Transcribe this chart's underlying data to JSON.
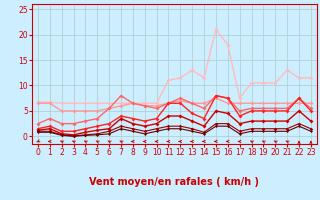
{
  "xlabel": "Vent moyen/en rafales ( km/h )",
  "bg_color": "#cceeff",
  "grid_color": "#aacccc",
  "axis_color": "#cc0000",
  "xlim": [
    -0.5,
    23.5
  ],
  "ylim": [
    -1.5,
    26
  ],
  "yticks": [
    0,
    5,
    10,
    15,
    20,
    25
  ],
  "xticks": [
    0,
    1,
    2,
    3,
    4,
    5,
    6,
    7,
    8,
    9,
    10,
    11,
    12,
    13,
    14,
    15,
    16,
    17,
    18,
    19,
    20,
    21,
    22,
    23
  ],
  "series": [
    {
      "x": [
        0,
        1,
        2,
        3,
        4,
        5,
        6,
        7,
        8,
        9,
        10,
        11,
        12,
        13,
        14,
        15,
        16,
        17,
        18,
        19,
        20,
        21,
        22,
        23
      ],
      "y": [
        6.7,
        6.7,
        6.5,
        6.5,
        6.5,
        6.5,
        6.5,
        6.5,
        6.5,
        6.5,
        6.5,
        11.0,
        11.5,
        13.0,
        11.5,
        21.0,
        18.0,
        7.5,
        10.5,
        10.5,
        10.5,
        13.0,
        11.5,
        11.5
      ],
      "color": "#ffbbbb",
      "linewidth": 1.0,
      "marker": "D",
      "markersize": 2.0
    },
    {
      "x": [
        0,
        1,
        2,
        3,
        4,
        5,
        6,
        7,
        8,
        9,
        10,
        11,
        12,
        13,
        14,
        15,
        16,
        17,
        18,
        19,
        20,
        21,
        22,
        23
      ],
      "y": [
        6.5,
        6.5,
        5.0,
        5.0,
        5.0,
        5.0,
        5.5,
        6.0,
        6.5,
        6.0,
        6.0,
        6.5,
        7.0,
        6.5,
        6.5,
        7.5,
        6.5,
        6.5,
        6.5,
        6.5,
        6.5,
        6.5,
        6.5,
        6.5
      ],
      "color": "#ff9999",
      "linewidth": 1.0,
      "marker": "D",
      "markersize": 2.0
    },
    {
      "x": [
        0,
        1,
        2,
        3,
        4,
        5,
        6,
        7,
        8,
        9,
        10,
        11,
        12,
        13,
        14,
        15,
        16,
        17,
        18,
        19,
        20,
        21,
        22,
        23
      ],
      "y": [
        2.5,
        3.5,
        2.5,
        2.5,
        3.0,
        3.5,
        5.5,
        8.0,
        6.5,
        6.0,
        5.5,
        6.5,
        7.5,
        6.5,
        5.5,
        8.0,
        7.5,
        5.0,
        5.5,
        5.5,
        5.5,
        5.5,
        7.5,
        5.5
      ],
      "color": "#ff6666",
      "linewidth": 1.0,
      "marker": "D",
      "markersize": 2.0
    },
    {
      "x": [
        0,
        1,
        2,
        3,
        4,
        5,
        6,
        7,
        8,
        9,
        10,
        11,
        12,
        13,
        14,
        15,
        16,
        17,
        18,
        19,
        20,
        21,
        22,
        23
      ],
      "y": [
        1.5,
        2.0,
        1.0,
        1.0,
        1.5,
        2.0,
        2.5,
        4.0,
        3.5,
        3.0,
        3.5,
        6.5,
        6.5,
        4.5,
        3.5,
        8.0,
        7.5,
        4.0,
        5.0,
        5.0,
        5.0,
        5.0,
        7.5,
        5.0
      ],
      "color": "#ff2222",
      "linewidth": 1.0,
      "marker": "D",
      "markersize": 2.0
    },
    {
      "x": [
        0,
        1,
        2,
        3,
        4,
        5,
        6,
        7,
        8,
        9,
        10,
        11,
        12,
        13,
        14,
        15,
        16,
        17,
        18,
        19,
        20,
        21,
        22,
        23
      ],
      "y": [
        1.2,
        1.5,
        0.5,
        0.3,
        0.8,
        1.2,
        1.5,
        3.5,
        2.5,
        2.0,
        2.5,
        4.0,
        4.0,
        3.0,
        2.0,
        5.0,
        4.5,
        2.5,
        3.0,
        3.0,
        3.0,
        3.0,
        5.0,
        3.0
      ],
      "color": "#cc0000",
      "linewidth": 1.0,
      "marker": "D",
      "markersize": 2.0
    },
    {
      "x": [
        0,
        1,
        2,
        3,
        4,
        5,
        6,
        7,
        8,
        9,
        10,
        11,
        12,
        13,
        14,
        15,
        16,
        17,
        18,
        19,
        20,
        21,
        22,
        23
      ],
      "y": [
        1.0,
        1.0,
        0.3,
        0.1,
        0.3,
        0.5,
        1.0,
        2.0,
        1.5,
        1.0,
        1.5,
        2.0,
        2.0,
        1.5,
        0.8,
        2.5,
        2.5,
        1.0,
        1.5,
        1.5,
        1.5,
        1.5,
        2.5,
        1.5
      ],
      "color": "#990000",
      "linewidth": 0.8,
      "marker": "D",
      "markersize": 1.8
    },
    {
      "x": [
        0,
        1,
        2,
        3,
        4,
        5,
        6,
        7,
        8,
        9,
        10,
        11,
        12,
        13,
        14,
        15,
        16,
        17,
        18,
        19,
        20,
        21,
        22,
        23
      ],
      "y": [
        0.8,
        0.8,
        0.2,
        0.0,
        0.2,
        0.3,
        0.5,
        1.5,
        1.0,
        0.5,
        1.0,
        1.5,
        1.5,
        1.0,
        0.5,
        2.0,
        2.0,
        0.5,
        1.0,
        1.0,
        1.0,
        1.0,
        2.0,
        1.0
      ],
      "color": "#660000",
      "linewidth": 0.8,
      "marker": "D",
      "markersize": 1.5
    }
  ],
  "wind_directions": [
    225,
    270,
    315,
    315,
    315,
    315,
    315,
    315,
    270,
    270,
    270,
    270,
    270,
    270,
    270,
    270,
    270,
    270,
    315,
    315,
    315,
    315,
    0,
    0
  ],
  "arrow_color": "#cc0000",
  "xlabel_fontsize": 7,
  "tick_fontsize": 5.5,
  "tick_color": "#cc0000"
}
